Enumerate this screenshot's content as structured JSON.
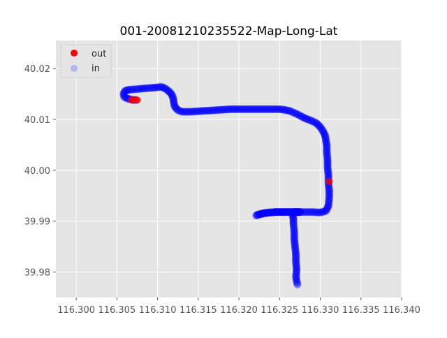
{
  "chart_data": {
    "type": "scatter",
    "title": "001-20081210235522-Map-Long-Lat",
    "xlabel": "",
    "ylabel": "",
    "xlim": [
      116.2975,
      116.34
    ],
    "ylim": [
      39.975,
      40.0255
    ],
    "xticks": [
      116.3,
      116.305,
      116.31,
      116.315,
      116.32,
      116.325,
      116.33,
      116.335,
      116.34
    ],
    "xtick_labels": [
      "116.300",
      "116.305",
      "116.310",
      "116.315",
      "116.320",
      "116.325",
      "116.330",
      "116.335",
      "116.340"
    ],
    "yticks": [
      39.98,
      39.99,
      40.0,
      40.01,
      40.02
    ],
    "ytick_labels": [
      "39.98",
      "39.99",
      "40.00",
      "40.01",
      "40.02"
    ],
    "grid": true,
    "legend_position": "top-left",
    "colors": {
      "out": "#ff0000",
      "in": "#0000ff",
      "in_legend": "#b4b4f0",
      "background": "#e5e5e5",
      "grid": "#ffffff"
    },
    "series": [
      {
        "name": "in",
        "x": [
          116.3272,
          116.327,
          116.3271,
          116.327,
          116.327,
          116.3269,
          116.3268,
          116.3268,
          116.3267,
          116.3267,
          116.3266,
          116.3267,
          116.3268,
          116.3268,
          116.3269,
          116.327,
          116.3272,
          116.3275,
          116.3272,
          116.3265,
          116.3255,
          116.3245,
          116.3235,
          116.3228,
          116.3223,
          116.3221,
          116.323,
          116.3245,
          116.326,
          116.3275,
          116.329,
          116.33,
          116.3307,
          116.331,
          116.3311,
          116.3311,
          116.331,
          116.331,
          116.3309,
          116.3309,
          116.3308,
          116.3308,
          116.3307,
          116.3306,
          116.3303,
          116.33,
          116.3295,
          116.3288,
          116.328,
          116.3272,
          116.3262,
          116.3255,
          116.325,
          116.3245,
          116.324,
          116.323,
          116.322,
          116.321,
          116.32,
          116.319,
          116.318,
          116.317,
          116.316,
          116.315,
          116.314,
          116.313,
          116.3125,
          116.3121,
          116.312,
          116.3119,
          116.3117,
          116.3114,
          116.311,
          116.3105,
          116.31,
          116.3093,
          116.3085,
          116.3078,
          116.307,
          116.3064,
          116.306,
          116.3058,
          116.3059,
          116.3063,
          116.307,
          116.3074
        ],
        "y": [
          39.9775,
          39.979,
          39.9805,
          39.982,
          39.9835,
          39.985,
          39.9865,
          39.988,
          39.9895,
          39.9905,
          39.9912,
          39.9915,
          39.9917,
          39.9918,
          39.9918,
          39.9918,
          39.9918,
          39.9918,
          39.9918,
          39.9918,
          39.9918,
          39.9918,
          39.9917,
          39.9915,
          39.9913,
          39.9911,
          39.9915,
          39.9918,
          39.9918,
          39.9918,
          39.9918,
          39.9917,
          39.992,
          39.993,
          39.9945,
          39.996,
          39.9975,
          39.999,
          40.0005,
          40.002,
          40.0035,
          40.0048,
          40.0058,
          40.0068,
          40.0078,
          40.0085,
          40.0093,
          40.0098,
          40.0103,
          40.011,
          40.0117,
          40.0119,
          40.012,
          40.012,
          40.012,
          40.012,
          40.012,
          40.012,
          40.012,
          40.012,
          40.0119,
          40.0118,
          40.0117,
          40.0116,
          40.0115,
          40.0115,
          40.0118,
          40.0125,
          40.0133,
          40.0143,
          40.015,
          40.0155,
          40.016,
          40.0164,
          40.0163,
          40.0162,
          40.0161,
          40.016,
          40.0159,
          40.0158,
          40.0156,
          40.015,
          40.0144,
          40.0141,
          40.0138,
          40.0138
        ]
      },
      {
        "name": "out",
        "x": [
          116.3068,
          116.3072,
          116.3075,
          116.3311
        ],
        "y": [
          40.0138,
          40.0139,
          40.0138,
          39.9978
        ]
      }
    ]
  }
}
